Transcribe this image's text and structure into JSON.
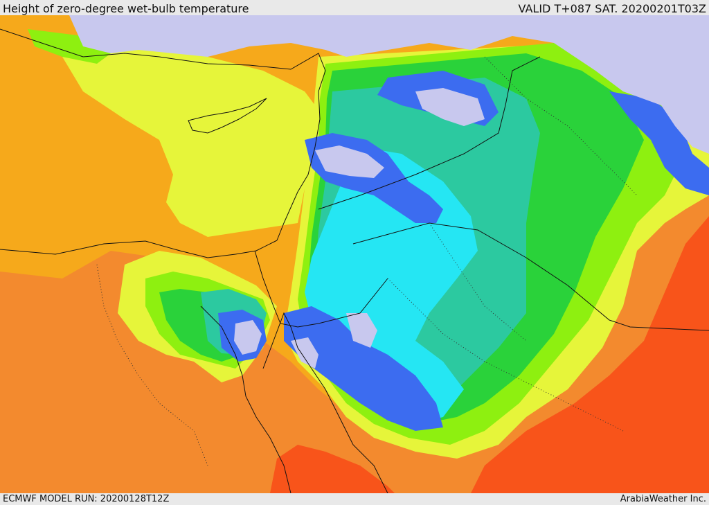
{
  "header": {
    "title": "Height of zero-degree wet-bulb temperature",
    "valid": "VALID T+087 SAT. 20200201T03Z"
  },
  "footer": {
    "model_run": "ECMWF MODEL RUN: 20200128T12Z",
    "brand": "ArabiaWeather Inc."
  },
  "colors": {
    "cold_low": "#c8c8ee",
    "blue": "#3c6cf0",
    "cyan": "#25e6f3",
    "teal": "#2cc9a0",
    "green": "#2ad23a",
    "lime": "#8ef010",
    "yellow": "#e6f53a",
    "orange_yellow": "#f6a91b",
    "orange": "#f38a2e",
    "red_orange": "#f8541a"
  }
}
